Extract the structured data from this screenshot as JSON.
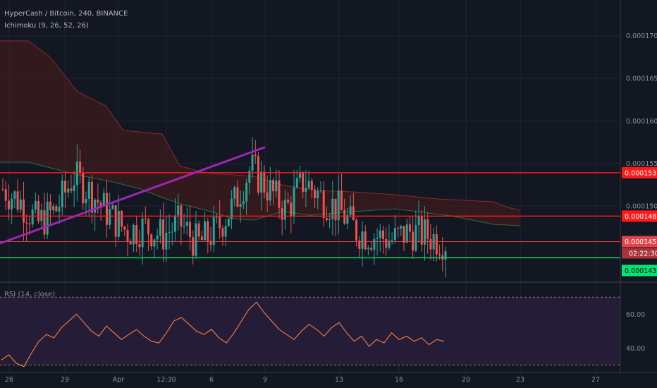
{
  "header": {
    "symbol_line": "HyperCash / Bitcoin, 240, BINANCE",
    "indicator_line": "Ichimoku (9, 26, 52, 26)",
    "rsi_line": "RSI (14, close)"
  },
  "colors": {
    "background": "#131722",
    "up_candle": "#26a69a",
    "down_candle": "#ef5350",
    "trendline": "#9c27b0",
    "resistance": "#ff1a1a",
    "support": "#00e676",
    "cloud_red": "#4a1b1b",
    "rsi_line": "#ff7a3d",
    "rsi_band": "#2a1f3d"
  },
  "chart_data": [
    {
      "type": "candlestick",
      "title": "HyperCash / Bitcoin, 240, BINANCE",
      "x_ticks": [
        "26",
        "29",
        "Apr",
        "12:30",
        "6",
        "9",
        "13",
        "16",
        "20",
        "23",
        "27"
      ],
      "y_ticks": [
        0.00017,
        0.000165,
        0.00016,
        0.000155,
        0.00015
      ],
      "y_tick_labels": [
        "0.0001700",
        "0.0001650",
        "0.0001600",
        "0.0001550",
        "0.0001500"
      ],
      "ylim": [
        0.0001412,
        0.0001742
      ],
      "levels": [
        {
          "label": "0.0001539",
          "value": 0.0001539,
          "kind": "resistance"
        },
        {
          "label": "0.0001488",
          "value": 0.0001488,
          "kind": "resistance"
        },
        {
          "label": "0.0001458",
          "value": 0.0001458,
          "kind": "current"
        },
        {
          "label": "0.0001439",
          "value": 0.0001439,
          "kind": "support"
        }
      ],
      "countdown_label": "02:22:30",
      "trendline": {
        "start_x": "9",
        "start_y": 0.0001569,
        "end_x": "22",
        "end_y": 0.0001456
      },
      "close_approx": [
        0.000152,
        0.0001505,
        0.000148,
        0.0001495,
        0.0001535,
        0.0001515,
        0.000149,
        0.000147,
        0.0001475,
        0.0001465,
        0.000148,
        0.0001455,
        0.000147,
        0.00015,
        0.0001545,
        0.000152,
        0.0001495,
        0.000153,
        0.000151,
        0.0001495,
        0.000147,
        0.0001465,
        0.000146,
        0.000147,
        0.0001465,
        0.0001458
      ]
    },
    {
      "type": "line",
      "title": "RSI (14, close)",
      "y_ticks": [
        60,
        40
      ],
      "y_tick_labels": [
        "60.00",
        "40.00"
      ],
      "ylim": [
        26,
        78
      ],
      "bands": [
        70,
        30
      ],
      "values": [
        33,
        36,
        31,
        29,
        37,
        44,
        48,
        46,
        52,
        56,
        60,
        55,
        50,
        47,
        53,
        49,
        45,
        48,
        51,
        47,
        44,
        43,
        49,
        56,
        58,
        54,
        50,
        48,
        51,
        46,
        43,
        49,
        56,
        63,
        67,
        61,
        56,
        51,
        48,
        45,
        50,
        54,
        51,
        47,
        52,
        55,
        49,
        44,
        47,
        41,
        45,
        43,
        49,
        45,
        47,
        44,
        46,
        42,
        45,
        44
      ]
    }
  ]
}
